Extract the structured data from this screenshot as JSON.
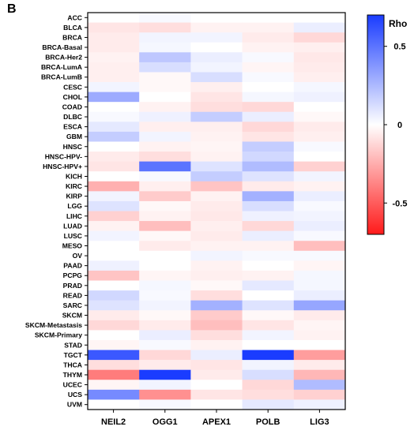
{
  "panel_label": "B",
  "chart_data": {
    "type": "heatmap",
    "columns": [
      "NEIL2",
      "OGG1",
      "APEX1",
      "POLB",
      "LIG3"
    ],
    "rows": [
      "ACC",
      "BLCA",
      "BRCA",
      "BRCA-Basal",
      "BRCA-Her2",
      "BRCA-LumA",
      "BRCA-LumB",
      "CESC",
      "CHOL",
      "COAD",
      "DLBC",
      "ESCA",
      "GBM",
      "HNSC",
      "HNSC-HPV-",
      "HNSC-HPV+",
      "KICH",
      "KIRC",
      "KIRP",
      "LGG",
      "LIHC",
      "LUAD",
      "LUSC",
      "MESO",
      "OV",
      "PAAD",
      "PCPG",
      "PRAD",
      "READ",
      "SARC",
      "SKCM",
      "SKCM-Metastasis",
      "SKCM-Primary",
      "STAD",
      "TGCT",
      "THCA",
      "THYM",
      "UCEC",
      "UCS",
      "UVM"
    ],
    "values": [
      [
        0.0,
        0.02,
        0.0,
        0.0,
        0.0
      ],
      [
        -0.08,
        -0.1,
        -0.04,
        -0.04,
        0.06
      ],
      [
        -0.06,
        0.04,
        0.04,
        -0.06,
        -0.12
      ],
      [
        -0.06,
        0.03,
        0.0,
        -0.04,
        -0.05
      ],
      [
        -0.04,
        0.2,
        0.06,
        0.02,
        -0.07
      ],
      [
        -0.05,
        0.12,
        0.04,
        -0.03,
        -0.06
      ],
      [
        -0.05,
        -0.02,
        0.12,
        0.02,
        -0.05
      ],
      [
        0.04,
        -0.02,
        -0.05,
        0.0,
        0.03
      ],
      [
        0.3,
        0.0,
        -0.08,
        0.03,
        0.05
      ],
      [
        0.0,
        -0.04,
        -0.1,
        -0.12,
        0.0
      ],
      [
        0.02,
        0.05,
        0.18,
        0.06,
        -0.02
      ],
      [
        0.08,
        -0.05,
        -0.05,
        -0.12,
        -0.06
      ],
      [
        0.18,
        0.04,
        -0.04,
        -0.08,
        -0.05
      ],
      [
        0.0,
        -0.04,
        -0.03,
        0.18,
        0.02
      ],
      [
        -0.06,
        -0.1,
        -0.04,
        0.14,
        0.0
      ],
      [
        -0.08,
        0.5,
        0.1,
        0.24,
        -0.14
      ],
      [
        0.0,
        0.02,
        0.18,
        0.1,
        0.04
      ],
      [
        -0.24,
        -0.05,
        -0.18,
        -0.06,
        -0.04
      ],
      [
        0.04,
        -0.16,
        -0.04,
        0.28,
        0.06
      ],
      [
        0.1,
        -0.02,
        -0.06,
        0.12,
        0.02
      ],
      [
        -0.14,
        -0.04,
        -0.07,
        0.05,
        0.04
      ],
      [
        -0.04,
        -0.2,
        -0.05,
        -0.12,
        0.06
      ],
      [
        0.04,
        -0.02,
        -0.06,
        0.06,
        0.02
      ],
      [
        0.0,
        -0.06,
        -0.04,
        -0.04,
        -0.2
      ],
      [
        0.0,
        0.0,
        0.04,
        0.02,
        0.02
      ],
      [
        0.05,
        0.0,
        -0.04,
        0.0,
        -0.03
      ],
      [
        -0.18,
        -0.03,
        -0.05,
        -0.04,
        0.03
      ],
      [
        0.0,
        0.03,
        -0.02,
        0.08,
        0.03
      ],
      [
        0.14,
        0.02,
        -0.1,
        0.0,
        0.06
      ],
      [
        0.1,
        0.04,
        0.28,
        0.1,
        0.32
      ],
      [
        -0.06,
        -0.02,
        -0.16,
        -0.02,
        -0.06
      ],
      [
        -0.12,
        -0.06,
        -0.2,
        -0.08,
        -0.03
      ],
      [
        0.0,
        0.06,
        -0.1,
        0.04,
        -0.04
      ],
      [
        -0.03,
        0.02,
        -0.04,
        0.0,
        0.0
      ],
      [
        0.6,
        -0.12,
        0.06,
        0.75,
        -0.3
      ],
      [
        -0.1,
        -0.06,
        -0.08,
        0.04,
        -0.06
      ],
      [
        -0.4,
        0.7,
        -0.06,
        0.12,
        -0.22
      ],
      [
        -0.03,
        0.04,
        0.0,
        -0.12,
        0.24
      ],
      [
        0.42,
        -0.34,
        -0.08,
        -0.1,
        -0.14
      ],
      [
        0.0,
        0.02,
        0.0,
        0.08,
        0.05
      ]
    ],
    "colorbar": {
      "title": "Rho",
      "min": -0.7,
      "max": 0.7,
      "ticks": [
        0.5,
        0,
        -0.5
      ],
      "tick_labels": [
        "0.5",
        "0",
        "-0.5"
      ],
      "colors": {
        "negative": "#ff1a1a",
        "zero": "#ffffff",
        "positive": "#1a3cff"
      }
    }
  }
}
